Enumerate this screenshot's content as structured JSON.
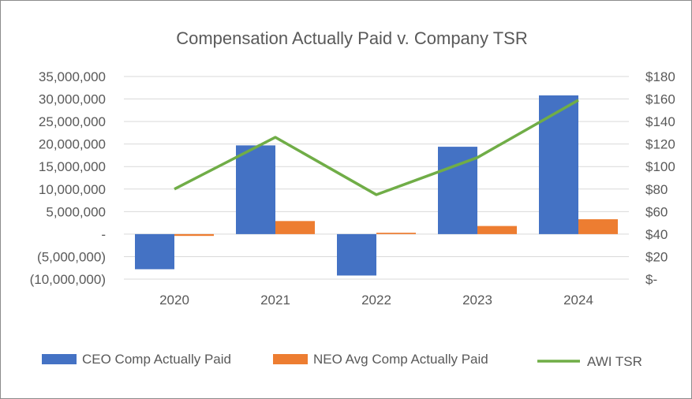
{
  "chart_data": {
    "type": "bar",
    "title": "Compensation Actually Paid v. Company TSR",
    "categories": [
      "2020",
      "2021",
      "2022",
      "2023",
      "2024"
    ],
    "series": [
      {
        "name": "CEO Comp Actually Paid",
        "kind": "bar",
        "axis": "left",
        "color": "#4472c4",
        "values": [
          -7800000,
          19700000,
          -9200000,
          19400000,
          30800000
        ]
      },
      {
        "name": "NEO Avg Comp Actually Paid",
        "kind": "bar",
        "axis": "left",
        "color": "#ed7d31",
        "values": [
          -400000,
          2900000,
          300000,
          1800000,
          3300000
        ]
      },
      {
        "name": "AWI TSR",
        "kind": "line",
        "axis": "right",
        "color": "#70ad47",
        "values": [
          80,
          126,
          75,
          108,
          159
        ]
      }
    ],
    "left_axis": {
      "ylim": [
        -10000000,
        35000000
      ],
      "ticks": [
        35000000,
        30000000,
        25000000,
        20000000,
        15000000,
        10000000,
        5000000,
        0,
        -5000000,
        -10000000
      ],
      "tick_labels": [
        "35,000,000",
        "30,000,000",
        "25,000,000",
        "20,000,000",
        "15,000,000",
        "10,000,000",
        "5,000,000",
        "-",
        "(5,000,000)",
        "(10,000,000)"
      ]
    },
    "right_axis": {
      "ylim": [
        0,
        180
      ],
      "ticks": [
        180,
        160,
        140,
        120,
        100,
        80,
        60,
        40,
        20,
        0
      ],
      "tick_labels": [
        "$180",
        "$160",
        "$140",
        "$120",
        "$100",
        "$80",
        "$60",
        "$40",
        "$20",
        "$-"
      ]
    },
    "gridlines": true,
    "legend_position": "bottom"
  }
}
